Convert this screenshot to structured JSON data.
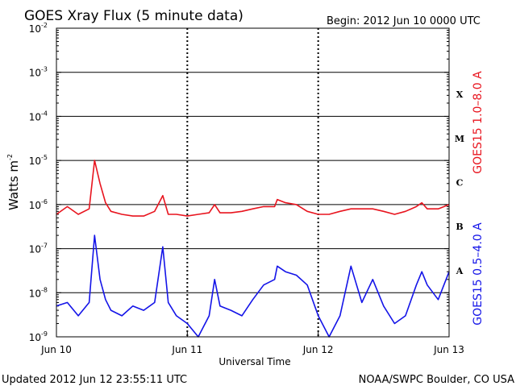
{
  "header": {
    "title": "GOES Xray Flux (5 minute data)",
    "begin": "Begin:  2012 Jun 10 0000 UTC"
  },
  "footer": {
    "updated": "Updated 2012 Jun 12 23:55:11 UTC",
    "credit": "NOAA/SWPC Boulder, CO USA"
  },
  "colors": {
    "long_channel": "#e8141e",
    "short_channel": "#1414e8",
    "frame": "#000000"
  },
  "chart_data": {
    "type": "line",
    "title": "GOES Xray Flux (5 minute data)",
    "xlabel": "Universal Time",
    "ylabel": "Watts m",
    "ylabel_exponent": "-2",
    "yscale": "log",
    "ylim": [
      1e-09,
      0.01
    ],
    "xlim": [
      "2012-06-10",
      "2012-06-13"
    ],
    "x_ticks": [
      "Jun 10",
      "Jun 11",
      "Jun 12",
      "Jun 13"
    ],
    "y_ticks": [
      {
        "value": 0.01,
        "base": "10",
        "exp": "-2"
      },
      {
        "value": 0.001,
        "base": "10",
        "exp": "-3"
      },
      {
        "value": 0.0001,
        "base": "10",
        "exp": "-4"
      },
      {
        "value": 1e-05,
        "base": "10",
        "exp": "-5"
      },
      {
        "value": 1e-06,
        "base": "10",
        "exp": "-6"
      },
      {
        "value": 1e-07,
        "base": "10",
        "exp": "-7"
      },
      {
        "value": 1e-08,
        "base": "10",
        "exp": "-8"
      },
      {
        "value": 1e-09,
        "base": "10",
        "exp": "-9"
      }
    ],
    "flare_classes": [
      {
        "label": "X",
        "from": 0.0001,
        "to": 0.001
      },
      {
        "label": "M",
        "from": 1e-05,
        "to": 0.0001
      },
      {
        "label": "C",
        "from": 1e-06,
        "to": 1e-05
      },
      {
        "label": "B",
        "from": 1e-07,
        "to": 1e-06
      },
      {
        "label": "A",
        "from": 1e-08,
        "to": 1e-07
      }
    ],
    "grid": true,
    "series": [
      {
        "name": "GOES15 1.0–8.0 A",
        "color": "#e8141e",
        "x": [
          "2012-06-10 00:00",
          "2012-06-10 02:00",
          "2012-06-10 04:00",
          "2012-06-10 06:00",
          "2012-06-10 07:00",
          "2012-06-10 08:00",
          "2012-06-10 09:00",
          "2012-06-10 10:00",
          "2012-06-10 12:00",
          "2012-06-10 14:00",
          "2012-06-10 16:00",
          "2012-06-10 18:00",
          "2012-06-10 19:30",
          "2012-06-10 20:30",
          "2012-06-10 22:00",
          "2012-06-11 00:00",
          "2012-06-11 02:00",
          "2012-06-11 04:00",
          "2012-06-11 05:00",
          "2012-06-11 06:00",
          "2012-06-11 08:00",
          "2012-06-11 10:00",
          "2012-06-11 12:00",
          "2012-06-11 14:00",
          "2012-06-11 16:00",
          "2012-06-11 16:30",
          "2012-06-11 18:00",
          "2012-06-11 20:00",
          "2012-06-11 22:00",
          "2012-06-12 00:00",
          "2012-06-12 02:00",
          "2012-06-12 04:00",
          "2012-06-12 06:00",
          "2012-06-12 08:00",
          "2012-06-12 10:00",
          "2012-06-12 12:00",
          "2012-06-12 14:00",
          "2012-06-12 16:00",
          "2012-06-12 18:00",
          "2012-06-12 19:00",
          "2012-06-12 20:00",
          "2012-06-12 22:00",
          "2012-06-12 24:00"
        ],
        "values": [
          6e-07,
          9e-07,
          6e-07,
          8e-07,
          1e-05,
          3e-06,
          1.1e-06,
          7e-07,
          6e-07,
          5.5e-07,
          5.5e-07,
          7e-07,
          1.6e-06,
          6e-07,
          6e-07,
          5.5e-07,
          6e-07,
          6.5e-07,
          1e-06,
          6.5e-07,
          6.5e-07,
          7e-07,
          8e-07,
          9e-07,
          9e-07,
          1.3e-06,
          1.1e-06,
          1e-06,
          7e-07,
          6e-07,
          6e-07,
          7e-07,
          8e-07,
          8e-07,
          8e-07,
          7e-07,
          6e-07,
          7e-07,
          9e-07,
          1.1e-06,
          8e-07,
          8e-07,
          1e-06
        ]
      },
      {
        "name": "GOES15 0.5–4.0 A",
        "color": "#1414e8",
        "x": [
          "2012-06-10 00:00",
          "2012-06-10 02:00",
          "2012-06-10 04:00",
          "2012-06-10 06:00",
          "2012-06-10 07:00",
          "2012-06-10 08:00",
          "2012-06-10 09:00",
          "2012-06-10 10:00",
          "2012-06-10 12:00",
          "2012-06-10 14:00",
          "2012-06-10 16:00",
          "2012-06-10 18:00",
          "2012-06-10 19:30",
          "2012-06-10 20:30",
          "2012-06-10 22:00",
          "2012-06-11 00:00",
          "2012-06-11 02:00",
          "2012-06-11 04:00",
          "2012-06-11 05:00",
          "2012-06-11 06:00",
          "2012-06-11 08:00",
          "2012-06-11 10:00",
          "2012-06-11 12:00",
          "2012-06-11 14:00",
          "2012-06-11 16:00",
          "2012-06-11 16:30",
          "2012-06-11 18:00",
          "2012-06-11 20:00",
          "2012-06-11 22:00",
          "2012-06-12 00:00",
          "2012-06-12 02:00",
          "2012-06-12 04:00",
          "2012-06-12 06:00",
          "2012-06-12 08:00",
          "2012-06-12 10:00",
          "2012-06-12 12:00",
          "2012-06-12 14:00",
          "2012-06-12 16:00",
          "2012-06-12 18:00",
          "2012-06-12 19:00",
          "2012-06-12 20:00",
          "2012-06-12 22:00",
          "2012-06-12 24:00"
        ],
        "values": [
          5e-09,
          6e-09,
          3e-09,
          6e-09,
          2e-07,
          2e-08,
          7e-09,
          4e-09,
          3e-09,
          5e-09,
          4e-09,
          6e-09,
          1.1e-07,
          6e-09,
          3e-09,
          2e-09,
          1e-09,
          3e-09,
          2e-08,
          5e-09,
          4e-09,
          3e-09,
          7e-09,
          1.5e-08,
          2e-08,
          4e-08,
          3e-08,
          2.5e-08,
          1.5e-08,
          3e-09,
          1e-09,
          3e-09,
          4e-08,
          6e-09,
          2e-08,
          5e-09,
          2e-09,
          3e-09,
          1.5e-08,
          3e-08,
          1.5e-08,
          7e-09,
          3e-08
        ]
      }
    ]
  }
}
